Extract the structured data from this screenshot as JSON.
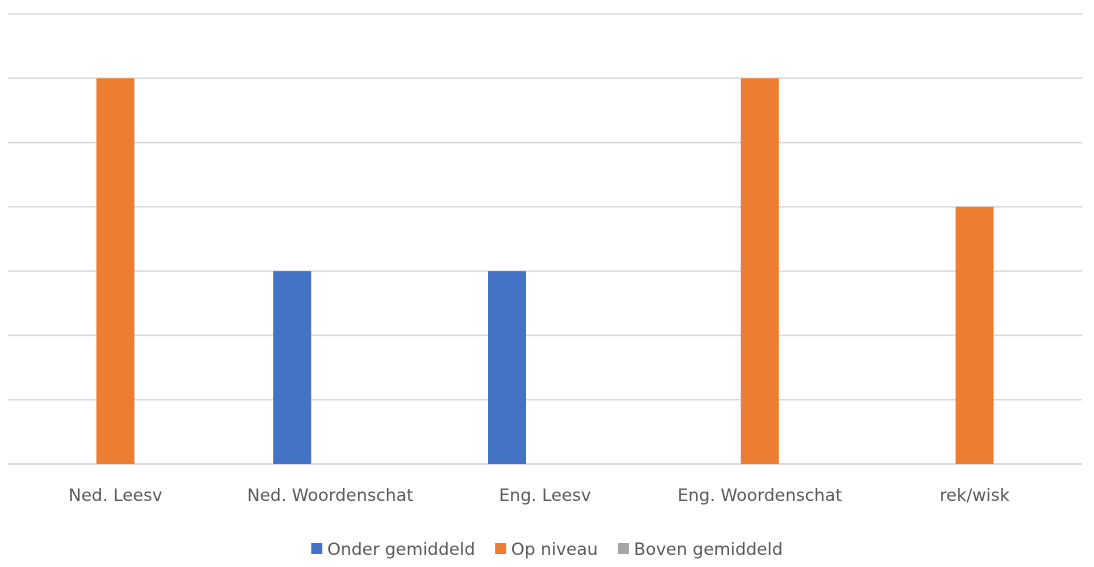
{
  "chart_data": {
    "type": "bar",
    "title": "",
    "xlabel": "",
    "ylabel": "",
    "categories": [
      "Ned. Leesv",
      "Ned. Woordenschat",
      "Eng. Leesv",
      "Eng. Woordenschat",
      "rek/wisk"
    ],
    "series": [
      {
        "name": "Onder gemiddeld",
        "color": "#4472C4",
        "values": [
          null,
          3,
          3,
          null,
          null
        ]
      },
      {
        "name": "Op niveau",
        "color": "#ED7D31",
        "values": [
          6,
          null,
          null,
          6,
          4
        ]
      },
      {
        "name": "Boven gemiddeld",
        "color": "#A5A5A5",
        "values": [
          null,
          null,
          null,
          null,
          null
        ]
      }
    ],
    "ylim": [
      0,
      7
    ],
    "grid": true,
    "legend_position": "bottom"
  }
}
